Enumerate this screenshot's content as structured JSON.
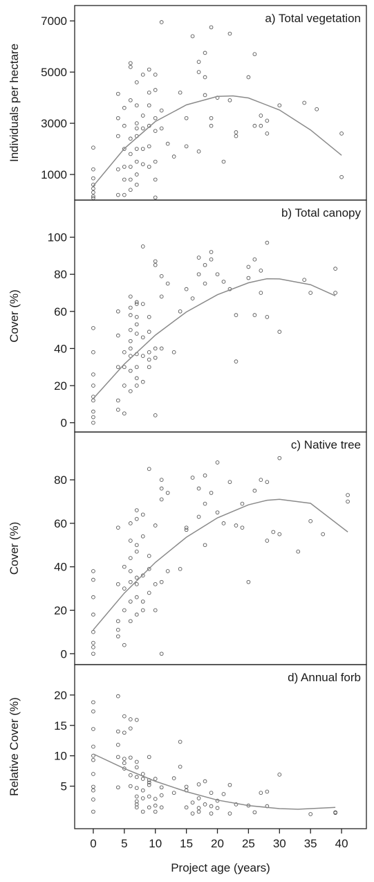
{
  "chart_data": [
    {
      "type": "scatter",
      "title": "a) Total vegetation",
      "ylabel": "Individuals per hectare",
      "ylim": [
        0,
        7600
      ],
      "yticks": [
        1000,
        3000,
        5000,
        7000
      ],
      "points": [
        [
          0,
          80
        ],
        [
          0,
          150
        ],
        [
          0,
          300
        ],
        [
          0,
          450
        ],
        [
          0,
          600
        ],
        [
          0,
          850
        ],
        [
          0,
          1200
        ],
        [
          0,
          2050
        ],
        [
          4,
          200
        ],
        [
          4,
          1200
        ],
        [
          4,
          2500
        ],
        [
          4,
          3200
        ],
        [
          4,
          4150
        ],
        [
          5,
          200
        ],
        [
          5,
          800
        ],
        [
          5,
          1300
        ],
        [
          5,
          2000
        ],
        [
          5,
          2900
        ],
        [
          5,
          3600
        ],
        [
          6,
          400
        ],
        [
          6,
          800
        ],
        [
          6,
          1300
        ],
        [
          6,
          1800
        ],
        [
          6,
          2400
        ],
        [
          6,
          3900
        ],
        [
          6,
          5200
        ],
        [
          6,
          5350
        ],
        [
          7,
          600
        ],
        [
          7,
          1000
        ],
        [
          7,
          1500
        ],
        [
          7,
          2000
        ],
        [
          7,
          2500
        ],
        [
          7,
          2800
        ],
        [
          7,
          3000
        ],
        [
          7,
          3700
        ],
        [
          7,
          4600
        ],
        [
          8,
          1400
        ],
        [
          8,
          2000
        ],
        [
          8,
          2800
        ],
        [
          8,
          3300
        ],
        [
          8,
          4900
        ],
        [
          9,
          1300
        ],
        [
          9,
          2100
        ],
        [
          9,
          2900
        ],
        [
          9,
          3700
        ],
        [
          9,
          4200
        ],
        [
          9,
          5100
        ],
        [
          10,
          800
        ],
        [
          10,
          1500
        ],
        [
          10,
          2700
        ],
        [
          10,
          3200
        ],
        [
          10,
          4300
        ],
        [
          10,
          4900
        ],
        [
          10,
          100
        ],
        [
          11,
          2800
        ],
        [
          11,
          3500
        ],
        [
          11,
          6950
        ],
        [
          12,
          2200
        ],
        [
          13,
          1700
        ],
        [
          14,
          4200
        ],
        [
          15,
          2100
        ],
        [
          15,
          3200
        ],
        [
          16,
          6400
        ],
        [
          17,
          1900
        ],
        [
          17,
          5000
        ],
        [
          17,
          5400
        ],
        [
          18,
          4100
        ],
        [
          18,
          4800
        ],
        [
          18,
          5750
        ],
        [
          19,
          2900
        ],
        [
          19,
          3200
        ],
        [
          19,
          6750
        ],
        [
          20,
          4000
        ],
        [
          21,
          1500
        ],
        [
          22,
          6500
        ],
        [
          22,
          3900
        ],
        [
          23,
          2500
        ],
        [
          23,
          2650
        ],
        [
          25,
          4800
        ],
        [
          26,
          5700
        ],
        [
          26,
          2900
        ],
        [
          27,
          3300
        ],
        [
          27,
          2900
        ],
        [
          28,
          3100
        ],
        [
          28,
          2600
        ],
        [
          30,
          3700
        ],
        [
          34,
          3800
        ],
        [
          36,
          3550
        ],
        [
          40,
          2600
        ],
        [
          40,
          900
        ]
      ],
      "fit_curve": [
        [
          0,
          550
        ],
        [
          5,
          2010
        ],
        [
          10,
          3070
        ],
        [
          15,
          3720
        ],
        [
          20,
          4050
        ],
        [
          22.5,
          4070
        ],
        [
          25,
          3990
        ],
        [
          30,
          3520
        ],
        [
          35,
          2740
        ],
        [
          40,
          1750
        ]
      ]
    },
    {
      "type": "scatter",
      "title": "b) Total canopy",
      "ylabel": "Cover (%)",
      "ylim": [
        -5,
        120
      ],
      "yticks": [
        0,
        20,
        40,
        60,
        80,
        100
      ],
      "points": [
        [
          0,
          0
        ],
        [
          0,
          3
        ],
        [
          0,
          6
        ],
        [
          0,
          12
        ],
        [
          0,
          14
        ],
        [
          0,
          20
        ],
        [
          0,
          26
        ],
        [
          0,
          38
        ],
        [
          0,
          51
        ],
        [
          4,
          7
        ],
        [
          4,
          12
        ],
        [
          4,
          30
        ],
        [
          4,
          47
        ],
        [
          4,
          60
        ],
        [
          5,
          5
        ],
        [
          5,
          20
        ],
        [
          5,
          30
        ],
        [
          5,
          38
        ],
        [
          6,
          17
        ],
        [
          6,
          28
        ],
        [
          6,
          36
        ],
        [
          6,
          40
        ],
        [
          6,
          44
        ],
        [
          6,
          50
        ],
        [
          6,
          58
        ],
        [
          6,
          62
        ],
        [
          6,
          68
        ],
        [
          7,
          20
        ],
        [
          7,
          24
        ],
        [
          7,
          30
        ],
        [
          7,
          37
        ],
        [
          7,
          48
        ],
        [
          7,
          53
        ],
        [
          7,
          57
        ],
        [
          7,
          64
        ],
        [
          7,
          65
        ],
        [
          8,
          22
        ],
        [
          8,
          36
        ],
        [
          8,
          46
        ],
        [
          8,
          64
        ],
        [
          8,
          95
        ],
        [
          9,
          30
        ],
        [
          9,
          34
        ],
        [
          9,
          38
        ],
        [
          9,
          49
        ],
        [
          9,
          57
        ],
        [
          10,
          4
        ],
        [
          10,
          35
        ],
        [
          10,
          40
        ],
        [
          10,
          85
        ],
        [
          10,
          87
        ],
        [
          11,
          40
        ],
        [
          11,
          68
        ],
        [
          11,
          79
        ],
        [
          12,
          75
        ],
        [
          13,
          38
        ],
        [
          14,
          60
        ],
        [
          15,
          72
        ],
        [
          16,
          67
        ],
        [
          17,
          80
        ],
        [
          17,
          89
        ],
        [
          18,
          75
        ],
        [
          18,
          85
        ],
        [
          19,
          88
        ],
        [
          19,
          92
        ],
        [
          20,
          80
        ],
        [
          21,
          76
        ],
        [
          22,
          72
        ],
        [
          23,
          58
        ],
        [
          23,
          33
        ],
        [
          25,
          78
        ],
        [
          25,
          84
        ],
        [
          26,
          58
        ],
        [
          26,
          88
        ],
        [
          27,
          70
        ],
        [
          27,
          82
        ],
        [
          28,
          97
        ],
        [
          28,
          57
        ],
        [
          30,
          49
        ],
        [
          34,
          77
        ],
        [
          35,
          70
        ],
        [
          39,
          70
        ],
        [
          39,
          83
        ]
      ],
      "fit_curve": [
        [
          0,
          13
        ],
        [
          5,
          31.6
        ],
        [
          10,
          47.2
        ],
        [
          15,
          59.7
        ],
        [
          20,
          69
        ],
        [
          25,
          75.4
        ],
        [
          28,
          77.6
        ],
        [
          30,
          77.5
        ],
        [
          35,
          74.4
        ],
        [
          39,
          68.4
        ]
      ]
    },
    {
      "type": "scatter",
      "title": "c) Native tree",
      "ylabel": "Cover (%)",
      "ylim": [
        -5,
        102
      ],
      "yticks": [
        0,
        20,
        40,
        60,
        80
      ],
      "points": [
        [
          0,
          0
        ],
        [
          0,
          3
        ],
        [
          0,
          5
        ],
        [
          0,
          10
        ],
        [
          0,
          18
        ],
        [
          0,
          26
        ],
        [
          0,
          34
        ],
        [
          0,
          38
        ],
        [
          4,
          8
        ],
        [
          4,
          11
        ],
        [
          4,
          15
        ],
        [
          4,
          32
        ],
        [
          4,
          58
        ],
        [
          5,
          4
        ],
        [
          5,
          20
        ],
        [
          5,
          30
        ],
        [
          5,
          40
        ],
        [
          6,
          15
        ],
        [
          6,
          24
        ],
        [
          6,
          33
        ],
        [
          6,
          38
        ],
        [
          6,
          44
        ],
        [
          6,
          52
        ],
        [
          6,
          60
        ],
        [
          7,
          18
        ],
        [
          7,
          26
        ],
        [
          7,
          32
        ],
        [
          7,
          35
        ],
        [
          7,
          47
        ],
        [
          7,
          50
        ],
        [
          7,
          62
        ],
        [
          7,
          66
        ],
        [
          8,
          20
        ],
        [
          8,
          24
        ],
        [
          8,
          36
        ],
        [
          8,
          54
        ],
        [
          8,
          64
        ],
        [
          9,
          28
        ],
        [
          9,
          39
        ],
        [
          9,
          45
        ],
        [
          9,
          85
        ],
        [
          10,
          20
        ],
        [
          10,
          32
        ],
        [
          10,
          59
        ],
        [
          11,
          0
        ],
        [
          11,
          33
        ],
        [
          11,
          71
        ],
        [
          11,
          76
        ],
        [
          11,
          80
        ],
        [
          12,
          38
        ],
        [
          12,
          74
        ],
        [
          14,
          39
        ],
        [
          15,
          57
        ],
        [
          15,
          58
        ],
        [
          16,
          81
        ],
        [
          17,
          63
        ],
        [
          17,
          76
        ],
        [
          18,
          50
        ],
        [
          18,
          69
        ],
        [
          18,
          82
        ],
        [
          19,
          74
        ],
        [
          20,
          65
        ],
        [
          20,
          88
        ],
        [
          21,
          60
        ],
        [
          22,
          79
        ],
        [
          23,
          59
        ],
        [
          24,
          58
        ],
        [
          24,
          69
        ],
        [
          25,
          33
        ],
        [
          26,
          75
        ],
        [
          27,
          80
        ],
        [
          28,
          52
        ],
        [
          28,
          79
        ],
        [
          29,
          56
        ],
        [
          30,
          55
        ],
        [
          30,
          90
        ],
        [
          33,
          47
        ],
        [
          35,
          61
        ],
        [
          37,
          55
        ],
        [
          41,
          70
        ],
        [
          41,
          73
        ]
      ],
      "fit_curve": [
        [
          0,
          11
        ],
        [
          5,
          27.9
        ],
        [
          10,
          42
        ],
        [
          15,
          53.6
        ],
        [
          20,
          62.5
        ],
        [
          25,
          68.5
        ],
        [
          28,
          70.6
        ],
        [
          30,
          71
        ],
        [
          35,
          69.2
        ],
        [
          41,
          56
        ]
      ]
    },
    {
      "type": "scatter",
      "title": "d) Annual forb",
      "ylabel": "Relative Cover (%)",
      "xlabel": "Project age (years)",
      "xlim": [
        -3,
        44
      ],
      "xticks": [
        0,
        5,
        10,
        15,
        20,
        25,
        30,
        35,
        40
      ],
      "ylim": [
        -2,
        25
      ],
      "yticks": [
        5,
        10,
        15,
        20
      ],
      "points": [
        [
          0,
          0.8
        ],
        [
          0,
          2.8
        ],
        [
          0,
          4.3
        ],
        [
          0,
          4.9
        ],
        [
          0,
          7
        ],
        [
          0,
          9.3
        ],
        [
          0,
          10
        ],
        [
          0,
          11.5
        ],
        [
          0,
          14.4
        ],
        [
          0,
          17.3
        ],
        [
          0,
          18.8
        ],
        [
          4,
          4.8
        ],
        [
          4,
          9.8
        ],
        [
          4,
          11.8
        ],
        [
          4,
          14
        ],
        [
          4,
          19.8
        ],
        [
          5,
          7.9
        ],
        [
          5,
          8.8
        ],
        [
          5,
          9.5
        ],
        [
          5,
          13.8
        ],
        [
          5,
          16.5
        ],
        [
          6,
          5
        ],
        [
          6,
          6.8
        ],
        [
          6,
          9.7
        ],
        [
          6,
          14.5
        ],
        [
          6,
          16
        ],
        [
          7,
          1.5
        ],
        [
          7,
          2
        ],
        [
          7,
          2.5
        ],
        [
          7,
          3.3
        ],
        [
          7,
          4.7
        ],
        [
          7,
          6.5
        ],
        [
          7,
          8.1
        ],
        [
          7,
          9
        ],
        [
          7,
          15.9
        ],
        [
          8,
          0.8
        ],
        [
          8,
          3
        ],
        [
          8,
          4.3
        ],
        [
          8,
          6.2
        ],
        [
          8,
          7
        ],
        [
          9,
          1.5
        ],
        [
          9,
          3.3
        ],
        [
          9,
          5.2
        ],
        [
          9,
          5.6
        ],
        [
          9,
          6
        ],
        [
          9,
          9.8
        ],
        [
          10,
          0.8
        ],
        [
          10,
          1.8
        ],
        [
          10,
          2.9
        ],
        [
          10,
          6.2
        ],
        [
          11,
          1.5
        ],
        [
          11,
          3.5
        ],
        [
          11,
          4.8
        ],
        [
          13,
          3.9
        ],
        [
          13,
          6.3
        ],
        [
          14,
          8.2
        ],
        [
          14,
          12.3
        ],
        [
          15,
          1.5
        ],
        [
          15,
          4.3
        ],
        [
          15,
          4.9
        ],
        [
          16,
          0.5
        ],
        [
          16,
          2.3
        ],
        [
          17,
          0.8
        ],
        [
          17,
          1.4
        ],
        [
          17,
          3
        ],
        [
          17,
          5.3
        ],
        [
          18,
          2
        ],
        [
          18,
          5.8
        ],
        [
          19,
          0.5
        ],
        [
          19,
          1.7
        ],
        [
          19,
          3.9
        ],
        [
          20,
          1.4
        ],
        [
          20,
          2.6
        ],
        [
          21,
          3.7
        ],
        [
          22,
          0.5
        ],
        [
          22,
          5.2
        ],
        [
          23,
          2
        ],
        [
          25,
          1.8
        ],
        [
          26,
          0.7
        ],
        [
          27,
          3.9
        ],
        [
          28,
          1.7
        ],
        [
          28,
          4.1
        ],
        [
          30,
          6.9
        ],
        [
          35,
          0.4
        ],
        [
          39,
          0.6
        ],
        [
          39,
          0.7
        ]
      ],
      "fit_curve": [
        [
          0,
          10.3
        ],
        [
          5,
          7.9
        ],
        [
          10,
          5.8
        ],
        [
          15,
          4.1
        ],
        [
          20,
          2.7
        ],
        [
          25,
          1.8
        ],
        [
          30,
          1.3
        ],
        [
          33,
          1.2
        ],
        [
          35,
          1.3
        ],
        [
          39,
          1.5
        ]
      ]
    }
  ]
}
